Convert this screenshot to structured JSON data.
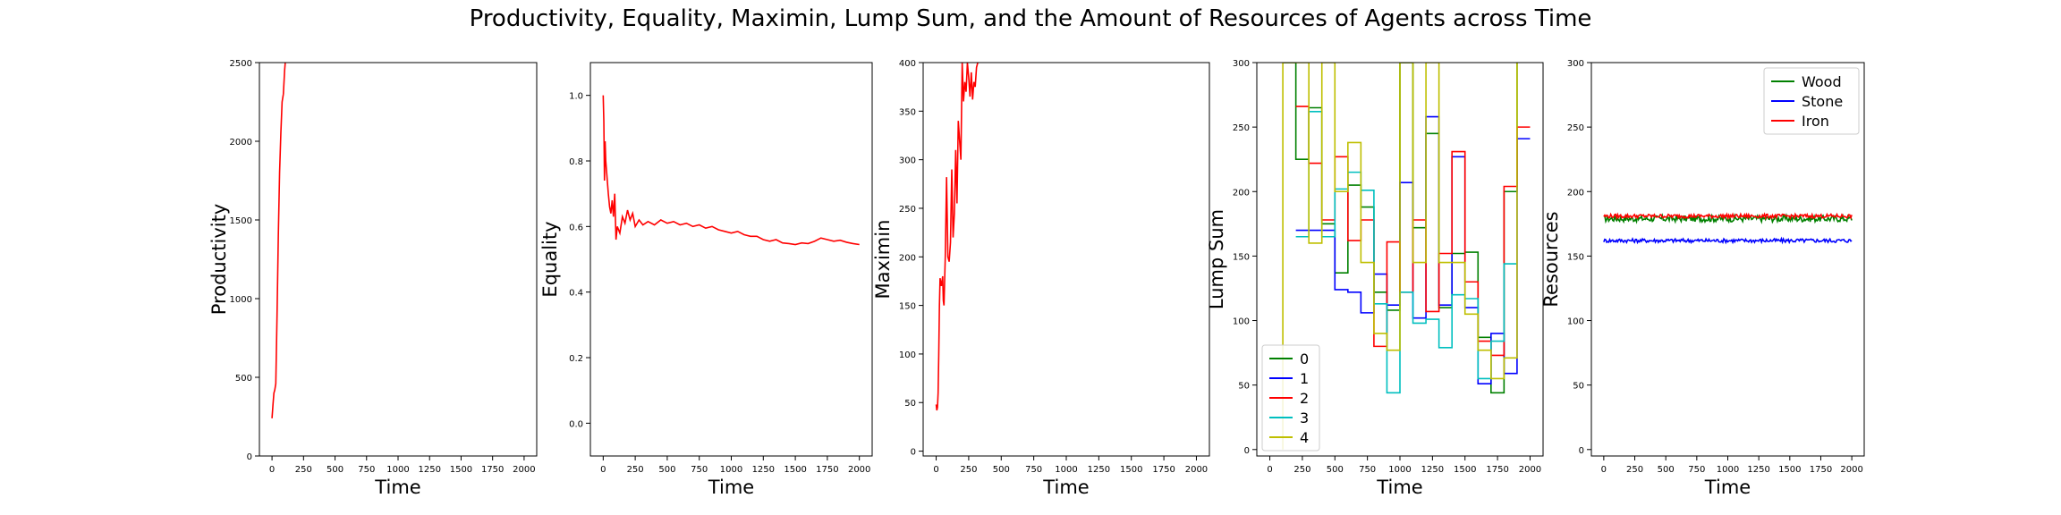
{
  "figure_title": "Productivity, Equality, Maximin, Lump Sum, and the Amount of Resources of Agents across Time",
  "chart_data": [
    {
      "type": "line",
      "xlabel": "Time",
      "ylabel": "Productivity",
      "xlim": [
        -100,
        2100
      ],
      "ylim": [
        0,
        2500
      ],
      "xticks": [
        0,
        250,
        500,
        750,
        1000,
        1250,
        1500,
        1750,
        2000
      ],
      "yticks": [
        0,
        500,
        1000,
        1500,
        2000,
        2500
      ],
      "series": [
        {
          "color": "#ff0000",
          "step": false,
          "points": [
            [
              0,
              240
            ],
            [
              8,
              330
            ],
            [
              15,
              400
            ],
            [
              22,
              420
            ],
            [
              30,
              460
            ],
            [
              40,
              900
            ],
            [
              50,
              1400
            ],
            [
              60,
              1800
            ],
            [
              70,
              2050
            ],
            [
              80,
              2250
            ],
            [
              90,
              2300
            ],
            [
              100,
              2450
            ],
            [
              105,
              2500
            ]
          ]
        }
      ]
    },
    {
      "type": "line",
      "xlabel": "Time",
      "ylabel": "Equality",
      "xlim": [
        -100,
        2100
      ],
      "ylim": [
        -0.1,
        1.1
      ],
      "xticks": [
        0,
        250,
        500,
        750,
        1000,
        1250,
        1500,
        1750,
        2000
      ],
      "yticks": [
        0.0,
        0.2,
        0.4,
        0.6,
        0.8,
        1.0
      ],
      "series": [
        {
          "color": "#ff0000",
          "step": false,
          "points": [
            [
              0,
              1.0
            ],
            [
              5,
              0.92
            ],
            [
              10,
              0.74
            ],
            [
              15,
              0.86
            ],
            [
              20,
              0.8
            ],
            [
              30,
              0.75
            ],
            [
              40,
              0.7
            ],
            [
              50,
              0.66
            ],
            [
              60,
              0.64
            ],
            [
              70,
              0.68
            ],
            [
              80,
              0.63
            ],
            [
              90,
              0.7
            ],
            [
              100,
              0.56
            ],
            [
              110,
              0.6
            ],
            [
              130,
              0.58
            ],
            [
              150,
              0.63
            ],
            [
              170,
              0.61
            ],
            [
              190,
              0.65
            ],
            [
              210,
              0.62
            ],
            [
              230,
              0.64
            ],
            [
              250,
              0.6
            ],
            [
              280,
              0.62
            ],
            [
              310,
              0.605
            ],
            [
              350,
              0.615
            ],
            [
              400,
              0.605
            ],
            [
              450,
              0.62
            ],
            [
              500,
              0.61
            ],
            [
              550,
              0.615
            ],
            [
              600,
              0.605
            ],
            [
              650,
              0.61
            ],
            [
              700,
              0.6
            ],
            [
              750,
              0.605
            ],
            [
              800,
              0.595
            ],
            [
              850,
              0.6
            ],
            [
              900,
              0.59
            ],
            [
              950,
              0.585
            ],
            [
              1000,
              0.58
            ],
            [
              1050,
              0.585
            ],
            [
              1100,
              0.575
            ],
            [
              1150,
              0.57
            ],
            [
              1200,
              0.57
            ],
            [
              1250,
              0.56
            ],
            [
              1300,
              0.555
            ],
            [
              1350,
              0.56
            ],
            [
              1400,
              0.55
            ],
            [
              1450,
              0.548
            ],
            [
              1500,
              0.545
            ],
            [
              1550,
              0.55
            ],
            [
              1600,
              0.548
            ],
            [
              1650,
              0.555
            ],
            [
              1700,
              0.565
            ],
            [
              1750,
              0.56
            ],
            [
              1800,
              0.555
            ],
            [
              1850,
              0.558
            ],
            [
              1900,
              0.552
            ],
            [
              1950,
              0.548
            ],
            [
              2000,
              0.545
            ]
          ]
        }
      ]
    },
    {
      "type": "line",
      "xlabel": "Time",
      "ylabel": "Maximin",
      "xlim": [
        -100,
        2100
      ],
      "ylim": [
        -5,
        400
      ],
      "xticks": [
        0,
        250,
        500,
        750,
        1000,
        1250,
        1500,
        1750,
        2000
      ],
      "yticks": [
        0,
        50,
        100,
        150,
        200,
        250,
        300,
        350,
        400
      ],
      "series": [
        {
          "color": "#ff0000",
          "step": false,
          "points": [
            [
              0,
              48
            ],
            [
              5,
              42
            ],
            [
              10,
              45
            ],
            [
              15,
              60
            ],
            [
              20,
              100
            ],
            [
              25,
              150
            ],
            [
              30,
              178
            ],
            [
              40,
              170
            ],
            [
              50,
              180
            ],
            [
              55,
              155
            ],
            [
              60,
              150
            ],
            [
              70,
              200
            ],
            [
              80,
              282
            ],
            [
              90,
              200
            ],
            [
              100,
              195
            ],
            [
              110,
              215
            ],
            [
              120,
              290
            ],
            [
              130,
              220
            ],
            [
              140,
              245
            ],
            [
              150,
              310
            ],
            [
              160,
              255
            ],
            [
              170,
              340
            ],
            [
              180,
              320
            ],
            [
              190,
              300
            ],
            [
              200,
              400
            ],
            [
              210,
              360
            ],
            [
              220,
              380
            ],
            [
              230,
              370
            ],
            [
              240,
              400
            ],
            [
              250,
              385
            ],
            [
              260,
              365
            ],
            [
              270,
              390
            ],
            [
              280,
              362
            ],
            [
              290,
              380
            ],
            [
              300,
              375
            ],
            [
              310,
              395
            ],
            [
              320,
              400
            ]
          ]
        }
      ]
    },
    {
      "type": "line",
      "xlabel": "Time",
      "ylabel": "Lump Sum",
      "xlim": [
        -100,
        2100
      ],
      "ylim": [
        -5,
        300
      ],
      "xticks": [
        0,
        250,
        500,
        750,
        1000,
        1250,
        1500,
        1750,
        2000
      ],
      "yticks": [
        0,
        50,
        100,
        150,
        200,
        250,
        300
      ],
      "legend": {
        "position": "lower-left",
        "entries": [
          "0",
          "1",
          "2",
          "3",
          "4"
        ]
      },
      "series": [
        {
          "name": "0",
          "color": "#008000",
          "step": true,
          "points": [
            [
              100,
              300
            ],
            [
              200,
              225
            ],
            [
              300,
              265
            ],
            [
              400,
              175
            ],
            [
              500,
              137
            ],
            [
              600,
              205
            ],
            [
              700,
              188
            ],
            [
              800,
              122
            ],
            [
              900,
              108
            ],
            [
              1000,
              300
            ],
            [
              1100,
              172
            ],
            [
              1200,
              245
            ],
            [
              1300,
              110
            ],
            [
              1400,
              152
            ],
            [
              1500,
              153
            ],
            [
              1600,
              87
            ],
            [
              1700,
              44
            ],
            [
              1800,
              200
            ],
            [
              1900,
              300
            ]
          ]
        },
        {
          "name": "1",
          "color": "#0000ff",
          "step": true,
          "points": [
            [
              200,
              170
            ],
            [
              300,
              170
            ],
            [
              400,
              170
            ],
            [
              500,
              124
            ],
            [
              600,
              122
            ],
            [
              700,
              106
            ],
            [
              800,
              136
            ],
            [
              900,
              112
            ],
            [
              1000,
              207
            ],
            [
              1100,
              102
            ],
            [
              1200,
              258
            ],
            [
              1300,
              112
            ],
            [
              1400,
              227
            ],
            [
              1500,
              110
            ],
            [
              1600,
              51
            ],
            [
              1700,
              90
            ],
            [
              1800,
              59
            ],
            [
              1900,
              241
            ],
            [
              2000,
              241
            ]
          ]
        },
        {
          "name": "2",
          "color": "#ff0000",
          "step": true,
          "points": [
            [
              200,
              266
            ],
            [
              300,
              222
            ],
            [
              400,
              178
            ],
            [
              500,
              227
            ],
            [
              600,
              162
            ],
            [
              700,
              178
            ],
            [
              800,
              80
            ],
            [
              900,
              161
            ],
            [
              1000,
              122
            ],
            [
              1100,
              178
            ],
            [
              1200,
              107
            ],
            [
              1300,
              152
            ],
            [
              1400,
              231
            ],
            [
              1500,
              130
            ],
            [
              1600,
              84
            ],
            [
              1700,
              73
            ],
            [
              1800,
              204
            ],
            [
              1900,
              250
            ],
            [
              2000,
              250
            ]
          ]
        },
        {
          "name": "3",
          "color": "#00bfbf",
          "step": true,
          "points": [
            [
              200,
              165
            ],
            [
              300,
              262
            ],
            [
              400,
              165
            ],
            [
              500,
              202
            ],
            [
              600,
              215
            ],
            [
              700,
              201
            ],
            [
              800,
              113
            ],
            [
              900,
              44
            ],
            [
              1000,
              122
            ],
            [
              1100,
              98
            ],
            [
              1200,
              101
            ],
            [
              1300,
              79
            ],
            [
              1400,
              120
            ],
            [
              1500,
              117
            ],
            [
              1600,
              55
            ],
            [
              1700,
              84
            ],
            [
              1800,
              144
            ],
            [
              1900,
              144
            ]
          ]
        },
        {
          "name": "4",
          "color": "#bfbf00",
          "step": true,
          "points": [
            [
              100,
              0
            ],
            [
              100,
              300
            ],
            [
              200,
              300
            ],
            [
              300,
              160
            ],
            [
              400,
              300
            ],
            [
              500,
              200
            ],
            [
              600,
              238
            ],
            [
              700,
              145
            ],
            [
              800,
              90
            ],
            [
              900,
              77
            ],
            [
              1000,
              300
            ],
            [
              1100,
              145
            ],
            [
              1200,
              300
            ],
            [
              1300,
              145
            ],
            [
              1400,
              145
            ],
            [
              1500,
              105
            ],
            [
              1600,
              77
            ],
            [
              1700,
              55
            ],
            [
              1800,
              71
            ],
            [
              1900,
              300
            ]
          ]
        }
      ]
    },
    {
      "type": "line",
      "xlabel": "Time",
      "ylabel": "Resources",
      "xlim": [
        -100,
        2100
      ],
      "ylim": [
        -5,
        300
      ],
      "xticks": [
        0,
        250,
        500,
        750,
        1000,
        1250,
        1500,
        1750,
        2000
      ],
      "yticks": [
        0,
        50,
        100,
        150,
        200,
        250,
        300
      ],
      "legend": {
        "position": "top-right",
        "entries": [
          "Wood",
          "Stone",
          "Iron"
        ]
      },
      "series": [
        {
          "name": "Wood",
          "color": "#008000",
          "step": false,
          "base": 179,
          "jitter": 2.5
        },
        {
          "name": "Stone",
          "color": "#0000ff",
          "step": false,
          "base": 162,
          "jitter": 1.5
        },
        {
          "name": "Iron",
          "color": "#ff0000",
          "step": false,
          "base": 181,
          "jitter": 1.5
        }
      ]
    }
  ]
}
